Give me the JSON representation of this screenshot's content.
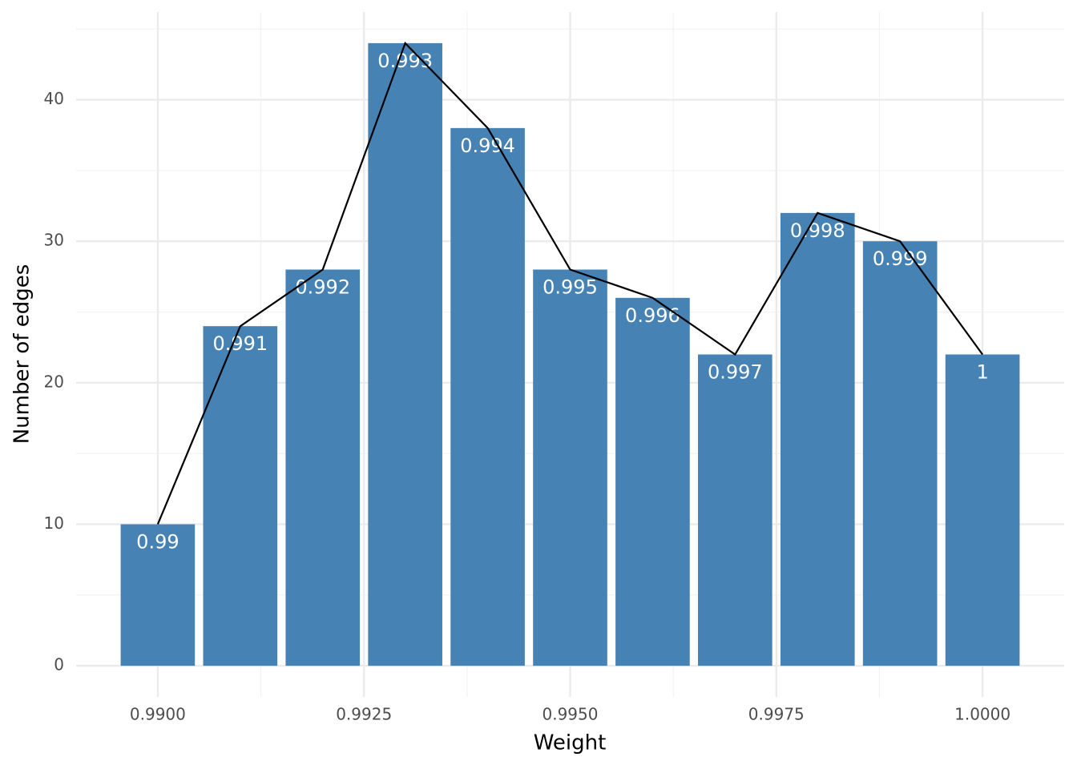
{
  "chart_data": {
    "type": "bar",
    "x_label": "Weight",
    "y_label": "Number of edges",
    "x": [
      0.99,
      0.991,
      0.992,
      0.993,
      0.994,
      0.995,
      0.996,
      0.997,
      0.998,
      0.999,
      1.0
    ],
    "bar_labels": [
      "0.99",
      "0.991",
      "0.992",
      "0.993",
      "0.994",
      "0.995",
      "0.996",
      "0.997",
      "0.998",
      "0.999",
      "1"
    ],
    "values": [
      10,
      24,
      28,
      44,
      38,
      28,
      26,
      22,
      32,
      30,
      22
    ],
    "bar_width": 0.0009,
    "color": "#4682b4",
    "label_color": "#ffffff",
    "line_color": "#000000",
    "xlim": [
      0.98901,
      1.00099
    ],
    "xticks": [
      {
        "value": 0.99,
        "label": "0.9900"
      },
      {
        "value": 0.9925,
        "label": "0.9925"
      },
      {
        "value": 0.995,
        "label": "0.9950"
      },
      {
        "value": 0.9975,
        "label": "0.9975"
      },
      {
        "value": 1.0,
        "label": "1.0000"
      }
    ],
    "xminor": [
      0.99125,
      0.99375,
      0.99625,
      0.99875
    ],
    "ylim": [
      -2.2,
      46.2
    ],
    "yticks": [
      0,
      10,
      20,
      30,
      40
    ],
    "yminor": [
      5,
      15,
      25,
      35,
      45
    ],
    "grid": true
  }
}
